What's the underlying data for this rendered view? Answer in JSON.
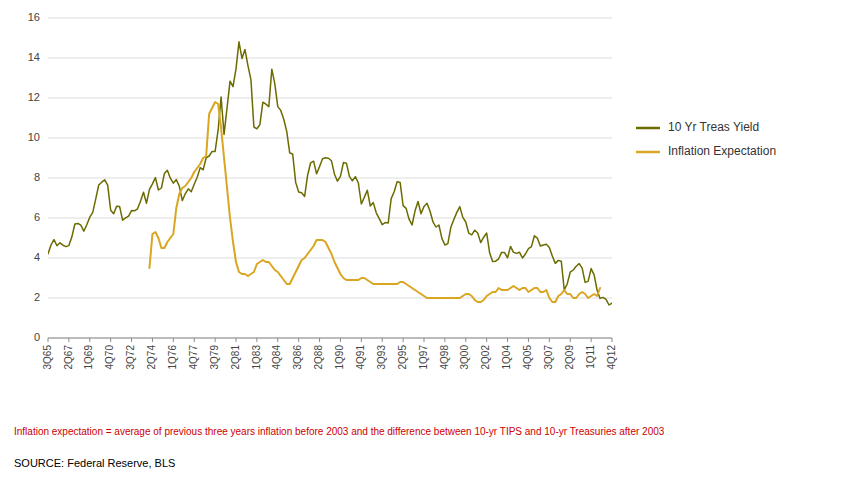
{
  "chart_data": {
    "type": "line",
    "categories": [
      "3Q65",
      null,
      null,
      null,
      null,
      null,
      null,
      "2Q67",
      null,
      null,
      null,
      null,
      null,
      null,
      "1Q69",
      null,
      null,
      null,
      null,
      null,
      null,
      "4Q70",
      null,
      null,
      null,
      null,
      null,
      null,
      "3Q72",
      null,
      null,
      null,
      null,
      null,
      null,
      "2Q74",
      null,
      null,
      null,
      null,
      null,
      null,
      "1Q76",
      null,
      null,
      null,
      null,
      null,
      null,
      "4Q77",
      null,
      null,
      null,
      null,
      null,
      null,
      "3Q79",
      null,
      null,
      null,
      null,
      null,
      null,
      "2Q81",
      null,
      null,
      null,
      null,
      null,
      null,
      "1Q83",
      null,
      null,
      null,
      null,
      null,
      null,
      "4Q84",
      null,
      null,
      null,
      null,
      null,
      null,
      "3Q86",
      null,
      null,
      null,
      null,
      null,
      null,
      "2Q88",
      null,
      null,
      null,
      null,
      null,
      null,
      "1Q90",
      null,
      null,
      null,
      null,
      null,
      null,
      "4Q91",
      null,
      null,
      null,
      null,
      null,
      null,
      "3Q93",
      null,
      null,
      null,
      null,
      null,
      null,
      "2Q95",
      null,
      null,
      null,
      null,
      null,
      null,
      "1Q97",
      null,
      null,
      null,
      null,
      null,
      null,
      "4Q98",
      null,
      null,
      null,
      null,
      null,
      null,
      "3Q00",
      null,
      null,
      null,
      null,
      null,
      null,
      "2Q02",
      null,
      null,
      null,
      null,
      null,
      null,
      "1Q04",
      null,
      null,
      null,
      null,
      null,
      null,
      "4Q05",
      null,
      null,
      null,
      null,
      null,
      null,
      "3Q07",
      null,
      null,
      null,
      null,
      null,
      null,
      "2Q09",
      null,
      null,
      null,
      null,
      null,
      null,
      "1Q11",
      null,
      null,
      null,
      null,
      null,
      null,
      "4Q12"
    ],
    "series": [
      {
        "name": "10 Yr Treas Yield",
        "color": "#6B6B00",
        "values": [
          4.21,
          4.65,
          4.92,
          4.61,
          4.76,
          4.64,
          4.57,
          4.62,
          5.06,
          5.7,
          5.73,
          5.64,
          5.34,
          5.66,
          6.04,
          6.28,
          6.96,
          7.65,
          7.79,
          7.91,
          7.64,
          6.39,
          6.21,
          6.59,
          6.57,
          5.89,
          6.01,
          6.09,
          6.37,
          6.36,
          6.46,
          6.84,
          7.29,
          6.74,
          7.43,
          7.71,
          8.02,
          7.4,
          7.5,
          8.22,
          8.39,
          7.99,
          7.74,
          7.92,
          7.59,
          6.87,
          7.21,
          7.46,
          7.31,
          7.69,
          8.04,
          8.52,
          8.41,
          9.01,
          9.1,
          9.33,
          9.33,
          10.39,
          12.05,
          10.18,
          11.51,
          12.84,
          12.57,
          13.46,
          14.81,
          13.98,
          14.43,
          13.62,
          12.92,
          10.55,
          10.46,
          10.67,
          11.79,
          11.69,
          11.57,
          13.44,
          12.72,
          11.57,
          11.38,
          10.94,
          10.33,
          9.26,
          9.19,
          7.78,
          7.3,
          7.26,
          7.08,
          8.14,
          8.76,
          8.84,
          8.21,
          8.57,
          8.96,
          9.01,
          8.99,
          8.86,
          8.19,
          7.84,
          8.08,
          8.77,
          8.74,
          8.08,
          7.86,
          8.07,
          7.75,
          6.7,
          7.03,
          7.39,
          6.6,
          6.77,
          6.26,
          5.97,
          5.67,
          5.77,
          5.75,
          6.97,
          7.31,
          7.81,
          7.78,
          6.62,
          6.48,
          5.94,
          5.65,
          6.36,
          6.83,
          6.21,
          6.58,
          6.74,
          6.35,
          5.81,
          5.55,
          5.65,
          4.98,
          4.65,
          4.72,
          5.54,
          5.92,
          6.28,
          6.57,
          6.03,
          5.8,
          5.24,
          5.16,
          5.39,
          5.25,
          4.77,
          5.04,
          5.25,
          4.26,
          3.82,
          3.84,
          3.96,
          4.28,
          4.27,
          4.01,
          4.58,
          4.28,
          4.23,
          4.29,
          4.0,
          4.2,
          4.47,
          4.57,
          5.11,
          4.99,
          4.6,
          4.65,
          4.69,
          4.52,
          4.1,
          3.73,
          3.88,
          3.84,
          2.4,
          2.71,
          3.29,
          3.4,
          3.59,
          3.72,
          3.49,
          2.78,
          2.83,
          3.47,
          3.16,
          2.4,
          1.98,
          2.03,
          1.93,
          1.65,
          1.75
        ]
      },
      {
        "name": "Inflation Expectation",
        "color": "#DAA520",
        "values": [
          null,
          null,
          null,
          null,
          null,
          null,
          null,
          null,
          null,
          null,
          null,
          null,
          null,
          null,
          null,
          null,
          null,
          null,
          null,
          null,
          null,
          null,
          null,
          null,
          null,
          null,
          null,
          null,
          null,
          null,
          null,
          null,
          null,
          null,
          3.5,
          5.2,
          5.3,
          5.0,
          4.5,
          4.5,
          4.8,
          5.0,
          5.2,
          6.5,
          7.2,
          7.5,
          7.6,
          7.8,
          8.0,
          8.3,
          8.5,
          8.7,
          9.0,
          9.1,
          11.2,
          11.5,
          11.8,
          11.7,
          10.5,
          9.0,
          7.5,
          6.0,
          4.8,
          3.8,
          3.3,
          3.2,
          3.2,
          3.1,
          3.2,
          3.3,
          3.7,
          3.8,
          3.9,
          3.8,
          3.8,
          3.6,
          3.4,
          3.3,
          3.1,
          2.9,
          2.7,
          2.7,
          3.0,
          3.3,
          3.6,
          3.9,
          4.0,
          4.2,
          4.4,
          4.6,
          4.9,
          4.9,
          4.9,
          4.8,
          4.5,
          4.2,
          3.8,
          3.5,
          3.2,
          3.0,
          2.9,
          2.9,
          2.9,
          2.9,
          2.9,
          3.0,
          3.0,
          2.9,
          2.8,
          2.7,
          2.7,
          2.7,
          2.7,
          2.7,
          2.7,
          2.7,
          2.7,
          2.7,
          2.8,
          2.8,
          2.7,
          2.6,
          2.5,
          2.4,
          2.3,
          2.2,
          2.1,
          2.0,
          2.0,
          2.0,
          2.0,
          2.0,
          2.0,
          2.0,
          2.0,
          2.0,
          2.0,
          2.0,
          2.0,
          2.1,
          2.2,
          2.2,
          2.1,
          1.9,
          1.8,
          1.8,
          1.9,
          2.1,
          2.2,
          2.3,
          2.3,
          2.5,
          2.4,
          2.4,
          2.4,
          2.5,
          2.6,
          2.5,
          2.4,
          2.5,
          2.5,
          2.3,
          2.4,
          2.5,
          2.5,
          2.3,
          2.3,
          2.4,
          2.0,
          1.8,
          1.8,
          2.1,
          2.2,
          2.4,
          2.2,
          2.2,
          2.0,
          2.0,
          2.2,
          2.3,
          2.2,
          2.0,
          2.1,
          2.2,
          2.1,
          2.5,
          null,
          null,
          null,
          null
        ]
      }
    ],
    "ylim": [
      0,
      16
    ],
    "yticks": [
      0,
      2,
      4,
      6,
      8,
      10,
      12,
      14,
      16
    ],
    "grid": true,
    "legend": "right",
    "annotations": [
      {
        "text": "Inflation expectation = average of previous three years inflation before 2003 and the difference between 10-yr TIPS and 10-yr Treasuries after 2003",
        "color": "#CC0000"
      },
      {
        "text": "SOURCE:  Federal Reserve, BLS",
        "color": "#000000"
      }
    ]
  }
}
